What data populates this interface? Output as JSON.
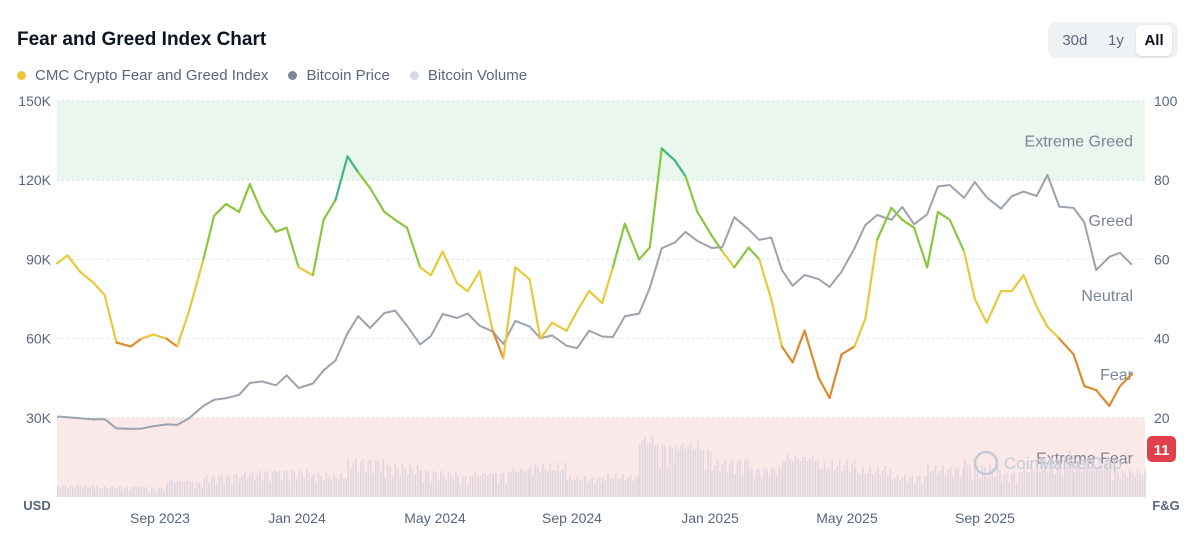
{
  "header": {
    "title": "Fear and Greed Index Chart",
    "ranges": [
      "30d",
      "1y",
      "All"
    ],
    "active_range": "All"
  },
  "legend": [
    {
      "label": "CMC Crypto Fear and Greed Index",
      "color": "#e9c63f"
    },
    {
      "label": "Bitcoin Price",
      "color": "#7d8596"
    },
    {
      "label": "Bitcoin Volume",
      "color": "#d6d9e0"
    }
  ],
  "watermark": "CoinMarketCap",
  "current_badge": "11",
  "chart_data": {
    "type": "line",
    "x_ticks": [
      "Sep 2023",
      "Jan 2024",
      "May 2024",
      "Sep 2024",
      "Jan 2025",
      "May 2025",
      "Sep 2025"
    ],
    "y_left": {
      "unit": "USD",
      "ticks": [
        "150K",
        "120K",
        "90K",
        "60K",
        "30K"
      ],
      "range": [
        0,
        150000
      ]
    },
    "y_right": {
      "unit": "F&G",
      "ticks": [
        "100",
        "80",
        "60",
        "40",
        "20"
      ],
      "range": [
        0,
        100
      ]
    },
    "zones": [
      {
        "label": "Extreme Greed",
        "from": 80,
        "to": 100,
        "color": "#eaf7ee"
      },
      {
        "label": "Greed",
        "from": 60,
        "to": 80
      },
      {
        "label": "Neutral",
        "from": 40,
        "to": 60
      },
      {
        "label": "Fear",
        "from": 20,
        "to": 40
      },
      {
        "label": "Extreme Fear",
        "from": 0,
        "to": 20,
        "color": "#fbe9ea"
      }
    ],
    "grid": true,
    "legend_position": "top-left",
    "colors": {
      "extreme_fear": "#d9434d",
      "fear": "#dc8a2b",
      "neutral": "#e9c93c",
      "greed": "#8cc63f",
      "extreme_greed": "#3fb67a",
      "price": "#9ca2ae",
      "volume": "#dcd3dd"
    },
    "series": [
      {
        "name": "CMC Crypto Fear and Greed Index",
        "x": [
          "2023-07-01",
          "2023-07-10",
          "2023-07-20",
          "2023-08-01",
          "2023-08-10",
          "2023-08-20",
          "2023-09-01",
          "2023-09-10",
          "2023-09-20",
          "2023-10-01",
          "2023-10-10",
          "2023-10-20",
          "2023-11-01",
          "2023-11-10",
          "2023-11-20",
          "2023-12-01",
          "2023-12-10",
          "2023-12-20",
          "2024-01-01",
          "2024-01-10",
          "2024-01-20",
          "2024-02-01",
          "2024-02-10",
          "2024-02-20",
          "2024-03-01",
          "2024-03-10",
          "2024-03-20",
          "2024-04-01",
          "2024-04-10",
          "2024-04-20",
          "2024-05-01",
          "2024-05-10",
          "2024-05-20",
          "2024-06-01",
          "2024-06-10",
          "2024-06-20",
          "2024-07-01",
          "2024-07-10",
          "2024-07-20",
          "2024-08-01",
          "2024-08-10",
          "2024-08-20",
          "2024-09-01",
          "2024-09-10",
          "2024-09-20",
          "2024-10-01",
          "2024-10-10",
          "2024-10-20",
          "2024-11-01",
          "2024-11-10",
          "2024-11-20",
          "2024-12-01",
          "2024-12-10",
          "2024-12-20",
          "2025-01-01",
          "2025-01-10",
          "2025-01-20",
          "2025-02-01",
          "2025-02-10",
          "2025-02-20",
          "2025-03-01",
          "2025-03-10",
          "2025-03-20",
          "2025-04-01",
          "2025-04-10",
          "2025-04-20",
          "2025-05-01",
          "2025-05-10",
          "2025-05-20",
          "2025-06-01",
          "2025-06-10",
          "2025-06-20",
          "2025-07-01",
          "2025-07-10",
          "2025-07-20",
          "2025-08-01",
          "2025-08-10",
          "2025-08-20",
          "2025-09-01",
          "2025-09-10",
          "2025-09-20",
          "2025-10-01",
          "2025-10-10",
          "2025-10-20",
          "2025-11-01",
          "2025-11-10",
          "2025-11-20",
          "2025-12-01",
          "2025-12-10",
          "2025-12-20"
        ],
        "values": [
          59,
          61,
          57,
          54,
          51,
          39,
          38,
          40,
          41,
          40,
          38,
          47,
          60,
          71,
          74,
          72,
          79,
          72,
          67,
          68,
          58,
          56,
          70,
          75,
          86,
          82,
          78,
          72,
          70,
          68,
          58,
          56,
          62,
          54,
          52,
          57,
          42,
          35,
          58,
          55,
          40,
          44,
          42,
          47,
          52,
          49,
          58,
          69,
          60,
          63,
          88,
          85,
          81,
          72,
          66,
          62,
          58,
          63,
          60,
          50,
          38,
          34,
          42,
          30,
          25,
          36,
          38,
          45,
          65,
          73,
          70,
          68,
          58,
          72,
          70,
          62,
          50,
          44,
          52,
          52,
          56,
          48,
          43,
          40,
          36,
          28,
          27,
          23,
          28,
          31
        ]
      },
      {
        "name": "Bitcoin Price",
        "x": [
          "2023-07-01",
          "2023-07-10",
          "2023-07-20",
          "2023-08-01",
          "2023-08-10",
          "2023-08-20",
          "2023-09-01",
          "2023-09-10",
          "2023-09-20",
          "2023-10-01",
          "2023-10-10",
          "2023-10-20",
          "2023-11-01",
          "2023-11-10",
          "2023-11-20",
          "2023-12-01",
          "2023-12-10",
          "2023-12-20",
          "2024-01-01",
          "2024-01-10",
          "2024-01-20",
          "2024-02-01",
          "2024-02-10",
          "2024-02-20",
          "2024-03-01",
          "2024-03-10",
          "2024-03-20",
          "2024-04-01",
          "2024-04-10",
          "2024-04-20",
          "2024-05-01",
          "2024-05-10",
          "2024-05-20",
          "2024-06-01",
          "2024-06-10",
          "2024-06-20",
          "2024-07-01",
          "2024-07-10",
          "2024-07-20",
          "2024-08-01",
          "2024-08-10",
          "2024-08-20",
          "2024-09-01",
          "2024-09-10",
          "2024-09-20",
          "2024-10-01",
          "2024-10-10",
          "2024-10-20",
          "2024-11-01",
          "2024-11-10",
          "2024-11-20",
          "2024-12-01",
          "2024-12-10",
          "2024-12-20",
          "2025-01-01",
          "2025-01-10",
          "2025-01-20",
          "2025-02-01",
          "2025-02-10",
          "2025-02-20",
          "2025-03-01",
          "2025-03-10",
          "2025-03-20",
          "2025-04-01",
          "2025-04-10",
          "2025-04-20",
          "2025-05-01",
          "2025-05-10",
          "2025-05-20",
          "2025-06-01",
          "2025-06-10",
          "2025-06-20",
          "2025-07-01",
          "2025-07-10",
          "2025-07-20",
          "2025-08-01",
          "2025-08-10",
          "2025-08-20",
          "2025-09-01",
          "2025-09-10",
          "2025-09-20",
          "2025-10-01",
          "2025-10-10",
          "2025-10-20",
          "2025-11-01",
          "2025-11-10",
          "2025-11-20",
          "2025-12-01",
          "2025-12-10",
          "2025-12-20"
        ],
        "values": [
          30500,
          30200,
          29800,
          29400,
          29500,
          26000,
          25800,
          25900,
          26800,
          27500,
          27300,
          29800,
          34500,
          36800,
          37400,
          38700,
          43200,
          43800,
          42300,
          46100,
          41300,
          43000,
          48000,
          51700,
          62000,
          68500,
          64000,
          69700,
          70600,
          64900,
          57800,
          60900,
          69300,
          67800,
          69500,
          64900,
          62700,
          58000,
          66700,
          64600,
          60100,
          61200,
          57300,
          56400,
          63000,
          60800,
          60600,
          68400,
          69500,
          79200,
          94200,
          96400,
          100400,
          97000,
          94300,
          94700,
          106000,
          101400,
          97400,
          98300,
          86000,
          80000,
          84100,
          82500,
          79600,
          85300,
          94200,
          103000,
          106800,
          105000,
          109900,
          103300,
          107100,
          117600,
          118200,
          113300,
          119300,
          113500,
          109200,
          113900,
          115700,
          114000,
          122000,
          110000,
          109500,
          104000,
          86000,
          91000,
          92500,
          88000
        ]
      },
      {
        "name": "Bitcoin Volume",
        "x": [
          "2023-07",
          "2023-08",
          "2023-09",
          "2023-10",
          "2023-11",
          "2023-12",
          "2024-01",
          "2024-02",
          "2024-03",
          "2024-04",
          "2024-05",
          "2024-06",
          "2024-07",
          "2024-08",
          "2024-09",
          "2024-10",
          "2024-11",
          "2024-12",
          "2025-01",
          "2025-02",
          "2025-03",
          "2025-04",
          "2025-05",
          "2025-06",
          "2025-07",
          "2025-08",
          "2025-09",
          "2025-10",
          "2025-11",
          "2025-12"
        ],
        "values": [
          14,
          12,
          10,
          16,
          24,
          28,
          32,
          26,
          45,
          35,
          28,
          22,
          26,
          38,
          24,
          26,
          55,
          50,
          40,
          35,
          38,
          40,
          34,
          26,
          36,
          34,
          26,
          42,
          44,
          32
        ]
      }
    ]
  }
}
